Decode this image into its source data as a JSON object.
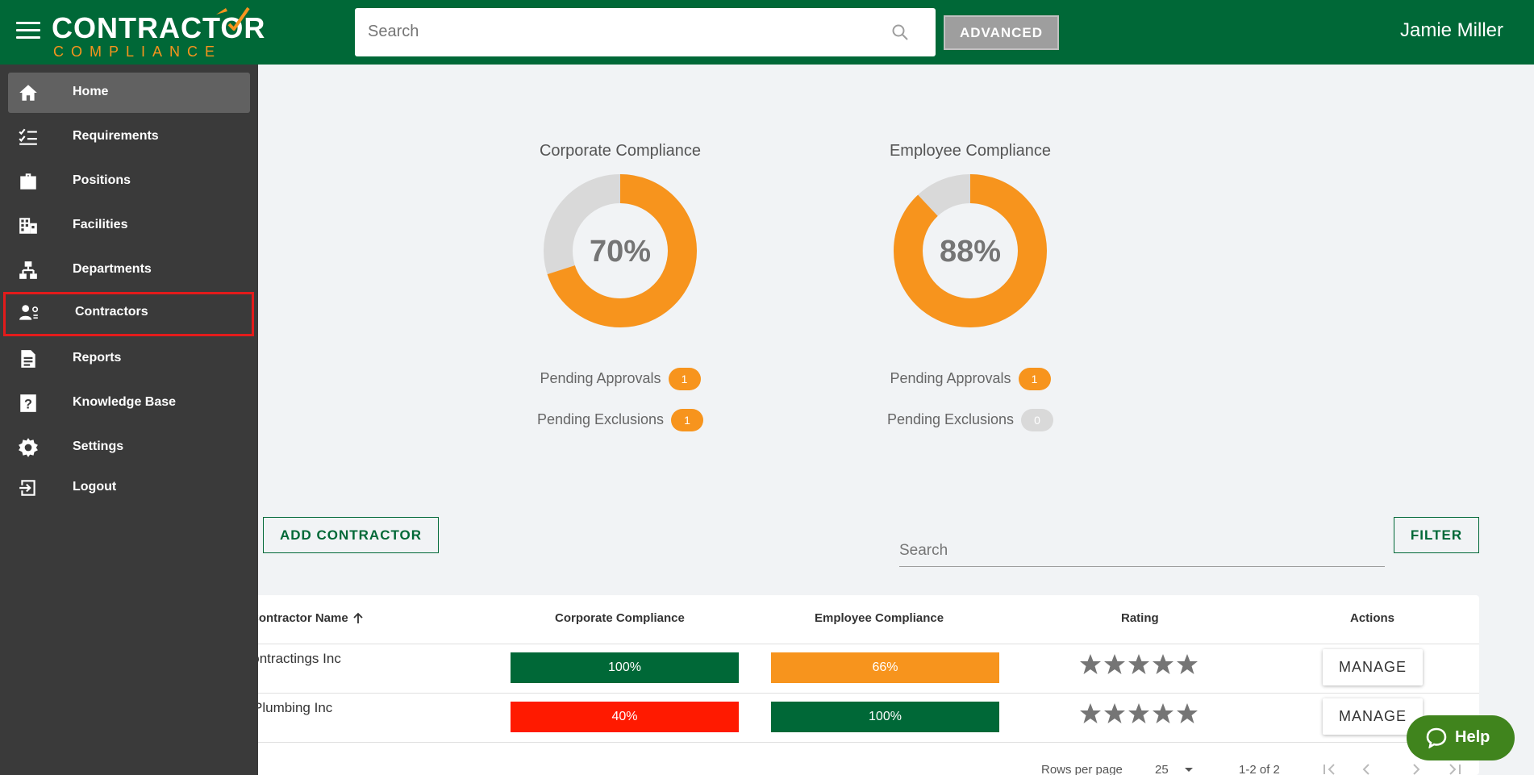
{
  "header": {
    "logo_top": "CONTRACTOR",
    "logo_bottom": "COMPLIANCE",
    "search_placeholder": "Search",
    "advanced_label": "ADVANCED",
    "user_name": "Jamie Miller"
  },
  "sidebar": {
    "items": [
      {
        "label": "Home",
        "icon": "home-icon"
      },
      {
        "label": "Requirements",
        "icon": "checklist-icon"
      },
      {
        "label": "Positions",
        "icon": "briefcase-icon"
      },
      {
        "label": "Facilities",
        "icon": "building-icon"
      },
      {
        "label": "Departments",
        "icon": "org-chart-icon"
      },
      {
        "label": "Contractors",
        "icon": "contractor-icon"
      },
      {
        "label": "Reports",
        "icon": "report-icon"
      },
      {
        "label": "Knowledge Base",
        "icon": "help-square-icon"
      },
      {
        "label": "Settings",
        "icon": "gear-icon"
      },
      {
        "label": "Logout",
        "icon": "logout-icon"
      }
    ],
    "active": "Home",
    "highlighted": "Contractors"
  },
  "dashboard": {
    "corporate": {
      "title": "Corporate Compliance",
      "percent_label": "70%",
      "percent": 70,
      "pending_approvals_label": "Pending Approvals",
      "pending_approvals": "1",
      "pending_exclusions_label": "Pending Exclusions",
      "pending_exclusions": "1"
    },
    "employee": {
      "title": "Employee Compliance",
      "percent_label": "88%",
      "percent": 88,
      "pending_approvals_label": "Pending Approvals",
      "pending_approvals": "1",
      "pending_exclusions_label": "Pending Exclusions",
      "pending_exclusions": "0"
    }
  },
  "toolbar": {
    "add_label": "ADD CONTRACTOR",
    "filter_label": "FILTER",
    "search_placeholder": "Search"
  },
  "table": {
    "columns": [
      "Contractor Name",
      "Corporate Compliance",
      "Employee Compliance",
      "Rating",
      "Actions"
    ],
    "rows": [
      {
        "name": "Contractings Inc",
        "corporate": "100%",
        "corporate_value": 100,
        "employee": "66%",
        "employee_value": 66,
        "rating": 0,
        "action": "MANAGE"
      },
      {
        "name": "Plumbing Inc",
        "corporate": "40%",
        "corporate_value": 40,
        "employee": "100%",
        "employee_value": 100,
        "rating": 0,
        "action": "MANAGE"
      }
    ],
    "pagination": {
      "rows_per_page_label": "Rows per page",
      "rows_per_page": "25",
      "range": "1-2 of 2"
    }
  },
  "help_label": "Help",
  "colors": {
    "brand_green": "#006837",
    "accent_orange": "#f7941d",
    "danger_red": "#ff1a00",
    "sidebar_bg": "#3a3a3a"
  }
}
